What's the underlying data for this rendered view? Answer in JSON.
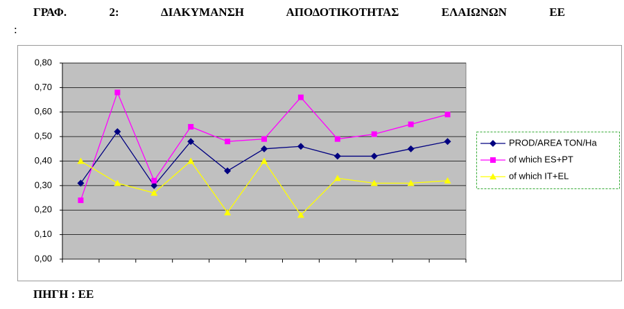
{
  "chart_data": {
    "type": "line",
    "title": "ΓΡΑΦ. 2: ΔΙΑΚΥΜΑΝΣΗ ΑΠΟΔΟΤΙΚΟΤΗΤΑΣ ΕΛΑΙΩΝΩΝ ΕΕ",
    "title_end": ":",
    "source": "ΠΗΓΗ : ΕΕ",
    "categories": [
      null,
      null,
      null,
      null,
      null,
      null,
      null,
      null,
      null,
      null,
      null
    ],
    "series": [
      {
        "name": "PROD/AREA TON/Ha",
        "color": "#000080",
        "marker": "diamond",
        "values": [
          0.31,
          0.52,
          0.3,
          0.48,
          0.36,
          0.45,
          0.46,
          0.42,
          0.42,
          0.45,
          0.48
        ]
      },
      {
        "name": "of which ES+PT",
        "color": "#ff00ff",
        "marker": "square",
        "values": [
          0.24,
          0.68,
          0.32,
          0.54,
          0.48,
          0.49,
          0.66,
          0.49,
          0.51,
          0.55,
          0.59
        ]
      },
      {
        "name": "of which IT+EL",
        "color": "#ffff00",
        "marker": "triangle",
        "values": [
          0.4,
          0.31,
          0.27,
          0.4,
          0.19,
          0.4,
          0.18,
          0.33,
          0.31,
          0.31,
          0.32
        ]
      }
    ],
    "ylim": [
      0,
      0.8
    ],
    "yticks": [
      {
        "value": 0,
        "label": "0,00"
      },
      {
        "value": 0.1,
        "label": "0,10"
      },
      {
        "value": 0.2,
        "label": "0,20"
      },
      {
        "value": 0.3,
        "label": "0,30"
      },
      {
        "value": 0.4,
        "label": "0,40"
      },
      {
        "value": 0.5,
        "label": "0,50"
      },
      {
        "value": 0.6,
        "label": "0,60"
      },
      {
        "value": 0.7,
        "label": "0,70"
      },
      {
        "value": 0.8,
        "label": "0,80"
      }
    ],
    "grid": true,
    "legend": "right"
  }
}
